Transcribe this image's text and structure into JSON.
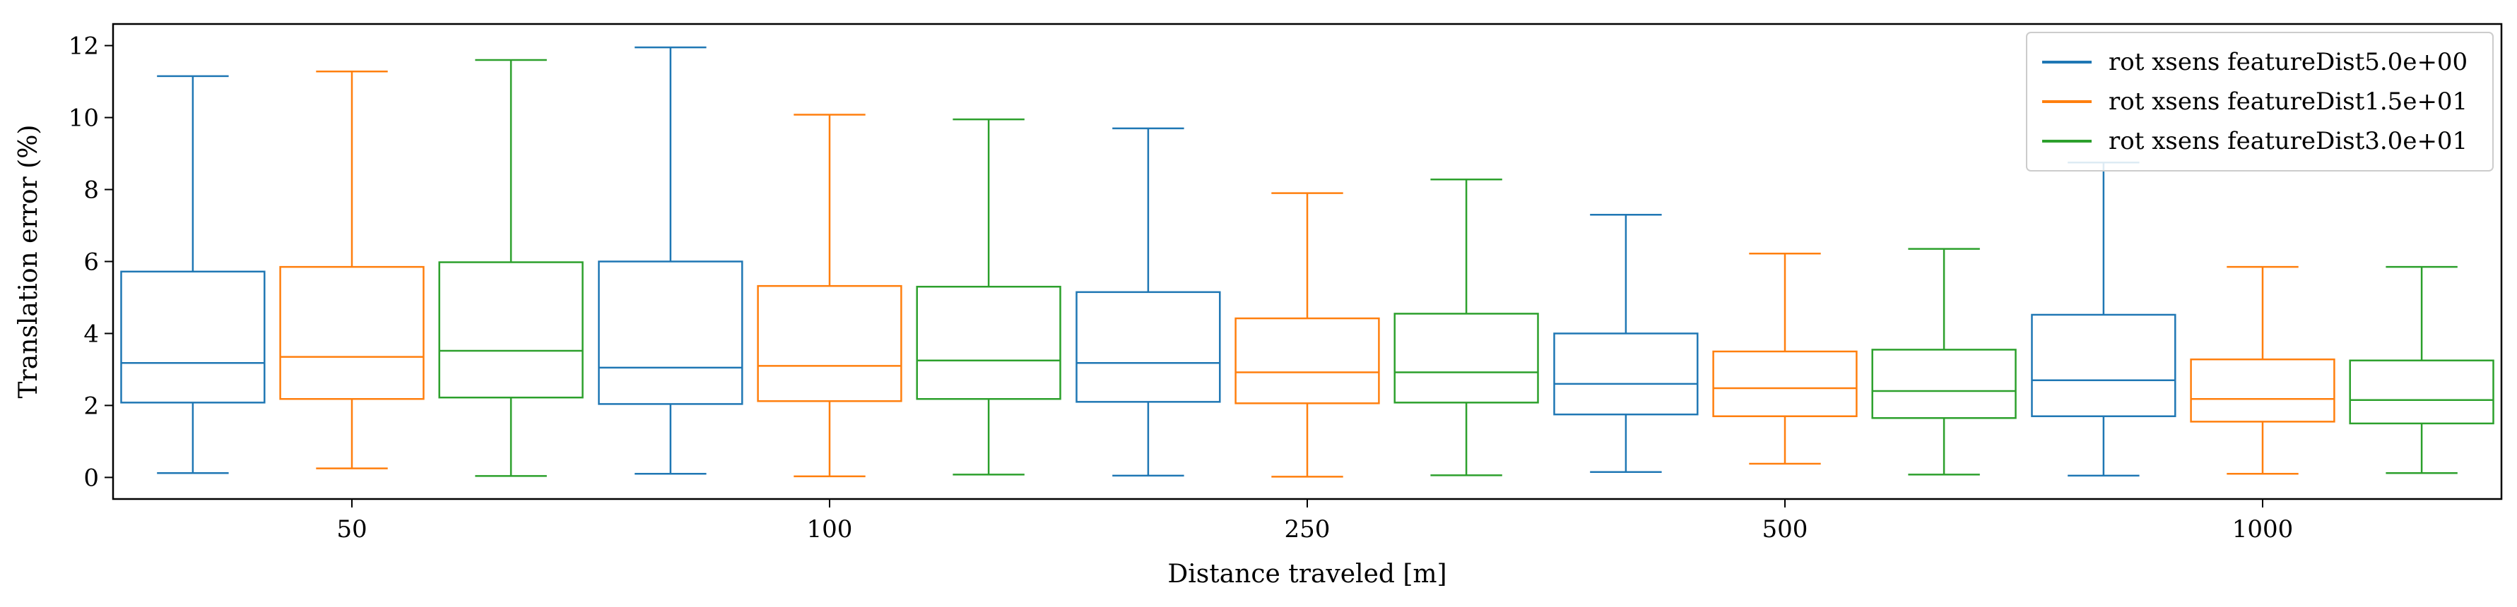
{
  "chart_data": {
    "type": "box",
    "xlabel": "Distance traveled [m]",
    "ylabel": "Translation error (%)",
    "categories": [
      "50",
      "100",
      "250",
      "500",
      "1000"
    ],
    "ylim": [
      -0.6,
      12.6
    ],
    "yticks": [
      0,
      2,
      4,
      6,
      8,
      10,
      12
    ],
    "grid": false,
    "legend_position": "top-right",
    "series": [
      {
        "name": "rot xsens featureDist5.0e+00",
        "color": "#1f77b4",
        "boxes": [
          {
            "whislo": 0.12,
            "q1": 2.08,
            "med": 3.18,
            "q3": 5.72,
            "whishi": 11.15
          },
          {
            "whislo": 0.1,
            "q1": 2.04,
            "med": 3.05,
            "q3": 6.0,
            "whishi": 11.95
          },
          {
            "whislo": 0.05,
            "q1": 2.1,
            "med": 3.18,
            "q3": 5.15,
            "whishi": 9.7
          },
          {
            "whislo": 0.15,
            "q1": 1.75,
            "med": 2.6,
            "q3": 4.0,
            "whishi": 7.3
          },
          {
            "whislo": 0.05,
            "q1": 1.7,
            "med": 2.7,
            "q3": 4.52,
            "whishi": 8.75
          }
        ]
      },
      {
        "name": "rot xsens featureDist1.5e+01",
        "color": "#ff7f0e",
        "boxes": [
          {
            "whislo": 0.25,
            "q1": 2.18,
            "med": 3.35,
            "q3": 5.85,
            "whishi": 11.28
          },
          {
            "whislo": 0.03,
            "q1": 2.12,
            "med": 3.1,
            "q3": 5.32,
            "whishi": 10.08
          },
          {
            "whislo": 0.02,
            "q1": 2.06,
            "med": 2.92,
            "q3": 4.42,
            "whishi": 7.9
          },
          {
            "whislo": 0.38,
            "q1": 1.7,
            "med": 2.48,
            "q3": 3.5,
            "whishi": 6.22
          },
          {
            "whislo": 0.1,
            "q1": 1.55,
            "med": 2.18,
            "q3": 3.28,
            "whishi": 5.85
          }
        ]
      },
      {
        "name": "rot xsens featureDist3.0e+01",
        "color": "#2ca02c",
        "boxes": [
          {
            "whislo": 0.04,
            "q1": 2.22,
            "med": 3.52,
            "q3": 5.98,
            "whishi": 11.6
          },
          {
            "whislo": 0.08,
            "q1": 2.18,
            "med": 3.25,
            "q3": 5.3,
            "whishi": 9.95
          },
          {
            "whislo": 0.06,
            "q1": 2.08,
            "med": 2.92,
            "q3": 4.55,
            "whishi": 8.28
          },
          {
            "whislo": 0.08,
            "q1": 1.65,
            "med": 2.4,
            "q3": 3.55,
            "whishi": 6.35
          },
          {
            "whislo": 0.12,
            "q1": 1.5,
            "med": 2.15,
            "q3": 3.25,
            "whishi": 5.85
          }
        ]
      }
    ]
  }
}
